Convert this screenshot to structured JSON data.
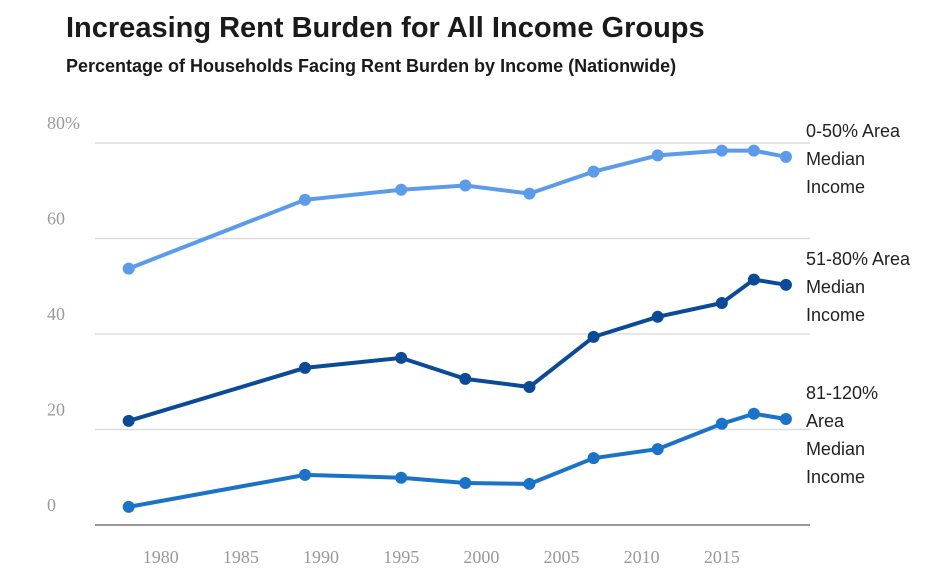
{
  "chart_data": {
    "type": "line",
    "title": "Increasing Rent Burden for All Income Groups",
    "subtitle": "Percentage of Households Facing Rent Burden by Income (Nationwide)",
    "x": [
      1978,
      1989,
      1995,
      1999,
      2003,
      2007,
      2011,
      2015,
      2017,
      2019
    ],
    "series": [
      {
        "name": "0-50% Area Median Income",
        "color": "#5b9bea",
        "values": [
          53.7,
          68.1,
          70.2,
          71.1,
          69.4,
          74,
          77.4,
          78.4,
          78.4,
          77.1
        ]
      },
      {
        "name": "51-80% Area Median Income",
        "color": "#0b4a96",
        "values": [
          21.8,
          32.9,
          35,
          30.6,
          28.9,
          39.4,
          43.6,
          46.5,
          51.4,
          50.3
        ]
      },
      {
        "name": "81-120% Area Median Income",
        "color": "#1a73c8",
        "values": [
          3.8,
          10.5,
          9.9,
          8.8,
          8.6,
          14,
          15.9,
          21.2,
          23.3,
          22.2
        ]
      }
    ],
    "xlim": [
      1975.9,
      2020.5
    ],
    "xticks": [
      1980,
      1985,
      1990,
      1995,
      2000,
      2005,
      2010,
      2015
    ],
    "ylim": [
      0,
      80
    ],
    "yticks": [
      0,
      20,
      40,
      60,
      {
        "value": 80,
        "label": "80%"
      }
    ],
    "grid": true
  }
}
